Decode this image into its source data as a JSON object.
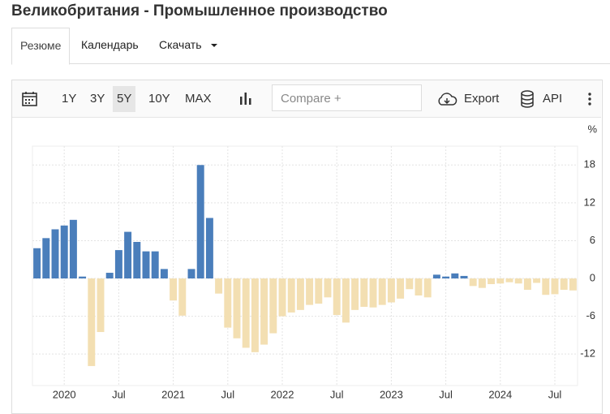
{
  "header": {
    "title": "Великобритания - Промышленное производство"
  },
  "tabs": [
    "Резюме",
    "Календарь",
    "Скачать"
  ],
  "toolbar": {
    "ranges": [
      "1Y",
      "3Y",
      "5Y",
      "10Y",
      "MAX"
    ],
    "compare_placeholder": "Compare +",
    "export": "Export",
    "api": "API"
  },
  "chart_data": {
    "type": "bar",
    "y_unit": "%",
    "categories": [
      null,
      null,
      null,
      "2020",
      null,
      null,
      null,
      null,
      null,
      "Jul",
      null,
      null,
      null,
      null,
      null,
      "2021",
      null,
      null,
      null,
      null,
      null,
      "Jul",
      null,
      null,
      null,
      null,
      null,
      "2022",
      null,
      null,
      null,
      null,
      null,
      "Jul",
      null,
      null,
      null,
      null,
      null,
      "2023",
      null,
      null,
      null,
      null,
      null,
      "Jul",
      null,
      null,
      null,
      null,
      null,
      "2024",
      null,
      null,
      null,
      null,
      null,
      "Jul",
      null,
      null
    ],
    "series": [
      {
        "color_positive": "#4a7ebb",
        "color_negative": "#f3dfb2",
        "values": [
          4.8,
          6.4,
          7.8,
          8.4,
          9.3,
          0.3,
          -13.9,
          -8.5,
          0.9,
          4.5,
          7.4,
          5.8,
          4.3,
          4.3,
          1.5,
          -3.5,
          -5.9,
          1.5,
          18,
          9.6,
          -2.4,
          -7.8,
          -9.5,
          -11,
          -11.7,
          -10.5,
          -8.7,
          -6,
          -5.4,
          -5,
          -4.2,
          -4,
          -3,
          -5.8,
          -7,
          -5,
          -4.5,
          -4.6,
          -4.2,
          -3.8,
          -3.2,
          -1.7,
          -2.7,
          -3,
          0.6,
          0.3,
          0.8,
          0.4,
          -1.2,
          -1.5,
          -0.9,
          -0.8,
          -0.6,
          -0.8,
          -1.8,
          -0.7,
          -2.6,
          -2.5,
          -1.8,
          -1.9
        ]
      }
    ],
    "ylim": [
      -17,
      21
    ],
    "yticks": [
      -12,
      -6,
      0,
      6,
      12,
      18
    ],
    "grid": true
  }
}
